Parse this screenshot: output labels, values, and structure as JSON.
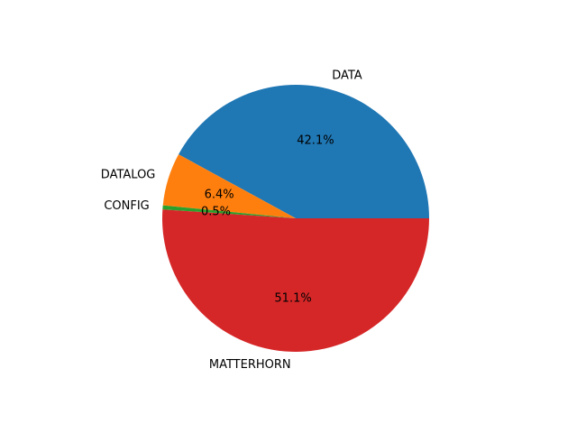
{
  "chart_data": {
    "type": "pie",
    "title": "",
    "slices": [
      {
        "label": "DATA",
        "value": 42.1,
        "pct_label": "42.1%",
        "color": "#1f77b4"
      },
      {
        "label": "DATALOG",
        "value": 6.4,
        "pct_label": "6.4%",
        "color": "#ff7f0e"
      },
      {
        "label": "CONFIG",
        "value": 0.5,
        "pct_label": "0.5%",
        "color": "#2ca02c"
      },
      {
        "label": "MATTERHORN",
        "value": 51.1,
        "pct_label": "51.1%",
        "color": "#d62728"
      }
    ],
    "start_angle_deg": 0,
    "direction": "counterclockwise",
    "legend": "none"
  }
}
